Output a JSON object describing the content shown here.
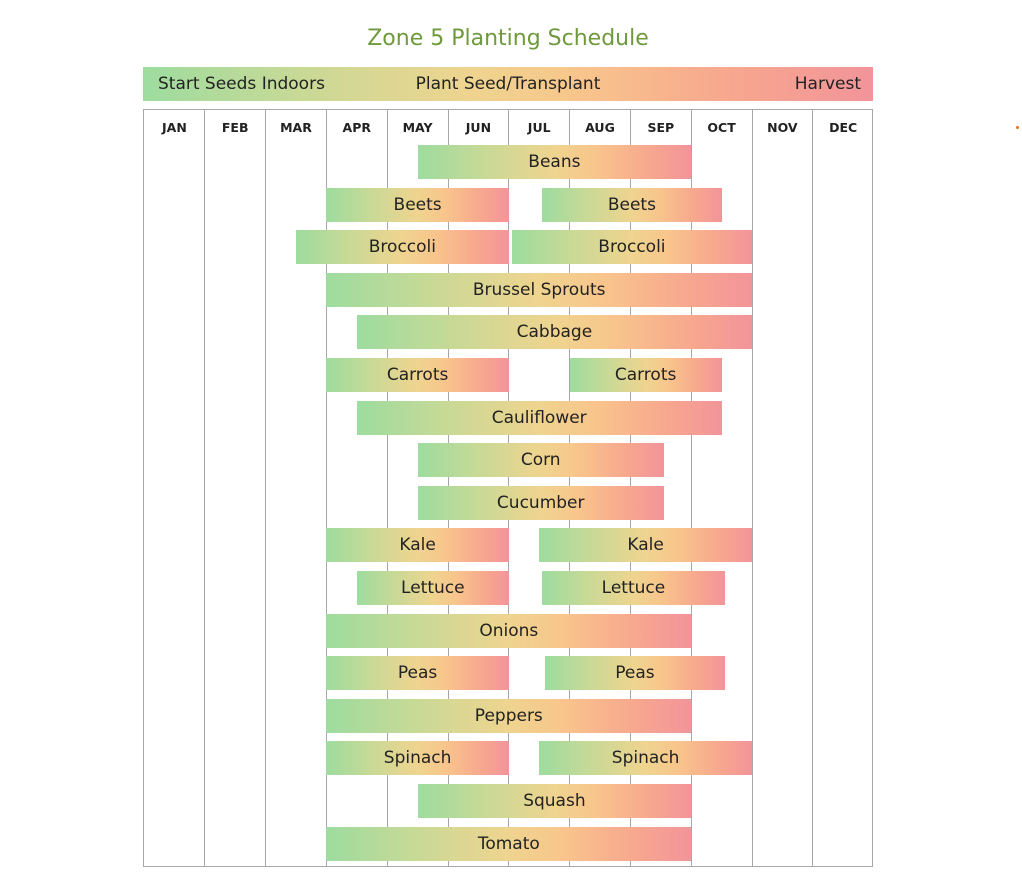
{
  "colors": {
    "title": "#6f9a3c",
    "start": "#9ddc9f",
    "plant": "#efd48f",
    "harvest": "#f2949a",
    "grid": "#a7a7a7"
  },
  "chart_data": {
    "type": "gantt",
    "title": "Zone 5 Planting Schedule",
    "legend": [
      "Start Seeds Indoors",
      "Plant Seed/Transplant",
      "Harvest"
    ],
    "months": [
      "JAN",
      "FEB",
      "MAR",
      "APR",
      "MAY",
      "JUN",
      "JUL",
      "AUG",
      "SEP",
      "OCT",
      "NOV",
      "DEC"
    ],
    "crops": [
      {
        "name": "Beans",
        "periods": [
          [
            4.5,
            9.0
          ]
        ]
      },
      {
        "name": "Beets",
        "periods": [
          [
            3.0,
            6.0
          ],
          [
            6.55,
            9.5
          ]
        ]
      },
      {
        "name": "Broccoli",
        "periods": [
          [
            2.5,
            6.0
          ],
          [
            6.05,
            10.0
          ]
        ]
      },
      {
        "name": "Brussel Sprouts",
        "periods": [
          [
            3.0,
            10.0
          ]
        ]
      },
      {
        "name": "Cabbage",
        "periods": [
          [
            3.5,
            10.0
          ]
        ]
      },
      {
        "name": "Carrots",
        "periods": [
          [
            3.0,
            6.0
          ],
          [
            7.0,
            9.5
          ]
        ]
      },
      {
        "name": "Cauliflower",
        "periods": [
          [
            3.5,
            9.5
          ]
        ]
      },
      {
        "name": "Corn",
        "periods": [
          [
            4.5,
            8.55
          ]
        ]
      },
      {
        "name": "Cucumber",
        "periods": [
          [
            4.5,
            8.55
          ]
        ]
      },
      {
        "name": "Kale",
        "periods": [
          [
            3.0,
            6.0
          ],
          [
            6.5,
            10.0
          ]
        ]
      },
      {
        "name": "Lettuce",
        "periods": [
          [
            3.5,
            6.0
          ],
          [
            6.55,
            9.55
          ]
        ]
      },
      {
        "name": "Onions",
        "periods": [
          [
            3.0,
            9.0
          ]
        ]
      },
      {
        "name": "Peas",
        "periods": [
          [
            3.0,
            6.0
          ],
          [
            6.6,
            9.55
          ]
        ]
      },
      {
        "name": "Peppers",
        "periods": [
          [
            3.0,
            9.0
          ]
        ]
      },
      {
        "name": "Spinach",
        "periods": [
          [
            3.0,
            6.0
          ],
          [
            6.5,
            10.0
          ]
        ]
      },
      {
        "name": "Squash",
        "periods": [
          [
            4.5,
            9.0
          ]
        ]
      },
      {
        "name": "Tomato",
        "periods": [
          [
            3.0,
            9.0
          ]
        ]
      }
    ]
  }
}
